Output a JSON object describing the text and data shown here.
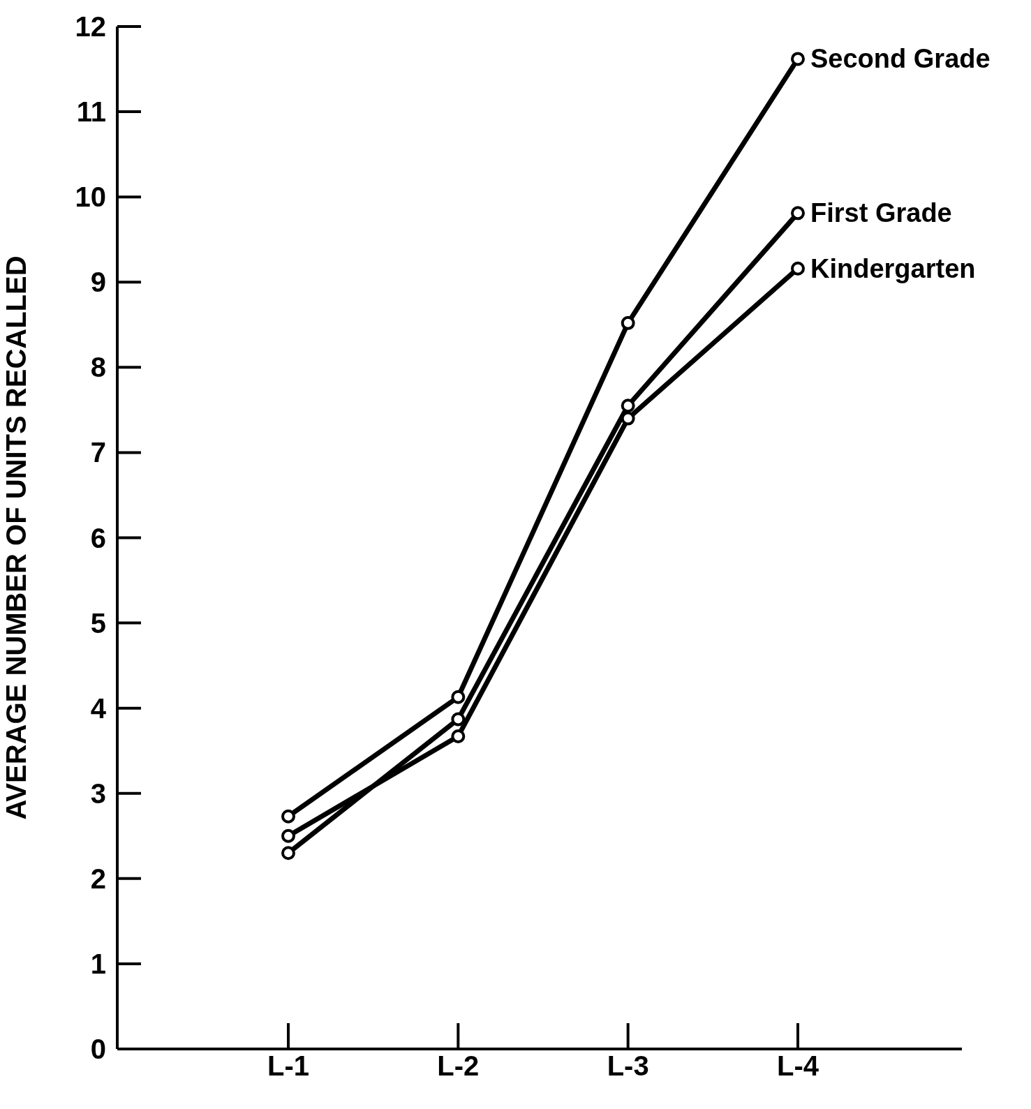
{
  "chart_data": {
    "type": "line",
    "ylabel": "AVERAGE NUMBER OF UNITS RECALLED",
    "categories": [
      "L-1",
      "L-2",
      "L-3",
      "L-4"
    ],
    "series": [
      {
        "name": "Second Grade",
        "color": "#000000",
        "values": [
          2.73,
          4.13,
          8.52,
          11.62
        ]
      },
      {
        "name": "First Grade",
        "color": "#000000",
        "values": [
          2.3,
          3.87,
          7.55,
          9.81
        ]
      },
      {
        "name": "Kindergarten",
        "color": "#000000",
        "values": [
          2.5,
          3.67,
          7.4,
          9.16
        ]
      }
    ],
    "ylim": [
      0,
      12
    ],
    "yticks": [
      0,
      1,
      2,
      3,
      4,
      5,
      6,
      7,
      8,
      9,
      10,
      11,
      12
    ],
    "marker": "circle",
    "line_style": "solid"
  }
}
